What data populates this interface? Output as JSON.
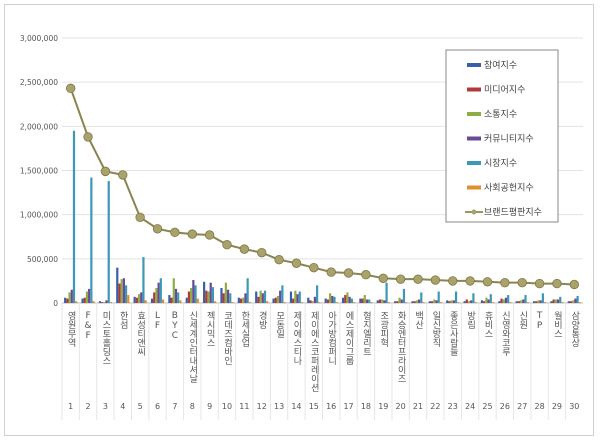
{
  "chart_data": {
    "type": "bar+line",
    "title": "",
    "xlabel": "",
    "ylabel": "",
    "ylim": [
      0,
      3000000
    ],
    "yticks": [
      "0",
      "500,000",
      "1,000,000",
      "1,500,000",
      "2,000,000",
      "2,500,000",
      "3,000,000"
    ],
    "grid": true,
    "legend_position": "top-right",
    "ranks": [
      1,
      2,
      3,
      4,
      5,
      6,
      7,
      8,
      9,
      10,
      11,
      12,
      13,
      14,
      15,
      16,
      17,
      18,
      19,
      20,
      21,
      22,
      23,
      24,
      25,
      26,
      27,
      28,
      29,
      30
    ],
    "categories": [
      "영원무역",
      "F&F",
      "미스토홀딩스",
      "한섬",
      "효성티앤씨",
      "LF",
      "BYC",
      "신세계인터내셔날",
      "젝시믹스",
      "코데즈컴바인",
      "한세실업",
      "경방",
      "모동일",
      "제이에스티나",
      "제이에스코퍼레이션",
      "아가방컴퍼니",
      "에스제이그룹",
      "형지엘리트",
      "조광피혁",
      "화승엔터프라이즈",
      "백산",
      "일신방직",
      "좋은사람들",
      "방림",
      "휴비스",
      "신영와코루",
      "신원",
      "TP",
      "월비스",
      "삼양통상"
    ],
    "series": [
      {
        "name": "참여지수",
        "type": "bar",
        "color": "#3a5ea8",
        "values": [
          60000,
          50000,
          20000,
          400000,
          70000,
          50000,
          90000,
          60000,
          240000,
          170000,
          60000,
          130000,
          50000,
          130000,
          60000,
          50000,
          60000,
          50000,
          30000,
          20000,
          20000,
          20000,
          30000,
          20000,
          30000,
          20000,
          20000,
          20000,
          20000,
          20000
        ]
      },
      {
        "name": "미디어지수",
        "type": "bar",
        "color": "#b13a36",
        "values": [
          50000,
          60000,
          10000,
          220000,
          60000,
          120000,
          60000,
          130000,
          140000,
          110000,
          50000,
          70000,
          60000,
          50000,
          30000,
          40000,
          90000,
          50000,
          40000,
          20000,
          20000,
          20000,
          20000,
          40000,
          20000,
          50000,
          20000,
          20000,
          40000,
          20000
        ]
      },
      {
        "name": "소통지수",
        "type": "bar",
        "color": "#8fad45",
        "values": [
          120000,
          130000,
          10000,
          270000,
          100000,
          170000,
          280000,
          170000,
          130000,
          230000,
          60000,
          140000,
          80000,
          140000,
          20000,
          110000,
          120000,
          90000,
          40000,
          60000,
          30000,
          40000,
          30000,
          20000,
          60000,
          40000,
          30000,
          30000,
          40000,
          30000
        ]
      },
      {
        "name": "커뮤니티지수",
        "type": "bar",
        "color": "#6a4a96",
        "values": [
          150000,
          160000,
          30000,
          280000,
          120000,
          230000,
          160000,
          260000,
          230000,
          150000,
          110000,
          110000,
          140000,
          100000,
          70000,
          80000,
          70000,
          40000,
          30000,
          40000,
          40000,
          30000,
          30000,
          30000,
          40000,
          60000,
          40000,
          30000,
          40000,
          50000
        ]
      },
      {
        "name": "시장지수",
        "type": "bar",
        "color": "#3c98b5",
        "values": [
          1950000,
          1420000,
          1380000,
          200000,
          520000,
          280000,
          120000,
          200000,
          180000,
          110000,
          280000,
          140000,
          200000,
          130000,
          200000,
          70000,
          50000,
          40000,
          230000,
          160000,
          120000,
          130000,
          130000,
          110000,
          100000,
          90000,
          90000,
          110000,
          70000,
          80000
        ]
      },
      {
        "name": "사회공헌지수",
        "type": "bar",
        "color": "#e08f2a",
        "values": [
          20000,
          20000,
          10000,
          90000,
          30000,
          40000,
          30000,
          50000,
          20000,
          10000,
          10000,
          20000,
          10000,
          10000,
          10000,
          10000,
          10000,
          10000,
          10000,
          10000,
          10000,
          10000,
          10000,
          10000,
          10000,
          10000,
          10000,
          10000,
          10000,
          10000
        ]
      },
      {
        "name": "브랜드평판지수",
        "type": "line",
        "color": "#9c9560",
        "values": [
          2430000,
          1880000,
          1490000,
          1450000,
          970000,
          840000,
          800000,
          780000,
          770000,
          660000,
          610000,
          570000,
          490000,
          450000,
          400000,
          350000,
          340000,
          320000,
          280000,
          270000,
          270000,
          260000,
          250000,
          250000,
          240000,
          230000,
          230000,
          220000,
          220000,
          210000
        ]
      }
    ]
  }
}
